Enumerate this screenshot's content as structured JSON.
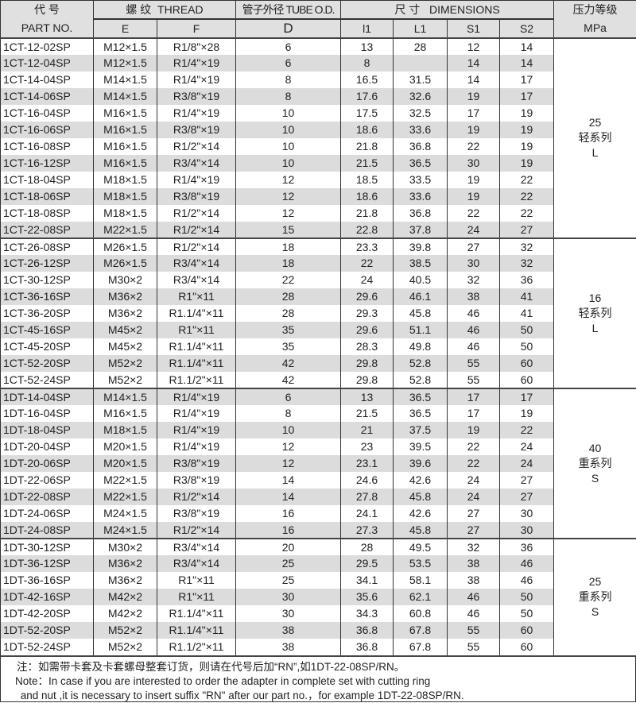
{
  "header": {
    "part_cn": "代 号",
    "part_en": "PART NO.",
    "thread": "螺 纹  THREAD",
    "tube": "管子外径 TUBE O.D.",
    "dims": "尺 寸   DIMENSIONS",
    "pressure": "压力等级",
    "E": "E",
    "F": "F",
    "D": "D",
    "l1": "l1",
    "L1": "L1",
    "S1": "S1",
    "S2": "S2",
    "mpa": "MPa"
  },
  "groups": [
    {
      "pressure": "25",
      "series": "轻系列",
      "code": "L",
      "rows": [
        [
          "1CT-12-02SP",
          "M12×1.5",
          "R1/8\"×28",
          "6",
          "13",
          "28",
          "12",
          "14"
        ],
        [
          "1CT-12-04SP",
          "M12×1.5",
          "R1/4\"×19",
          "6",
          "8",
          "",
          "14",
          "14"
        ],
        [
          "1CT-14-04SP",
          "M14×1.5",
          "R1/4\"×19",
          "8",
          "16.5",
          "31.5",
          "14",
          "17"
        ],
        [
          "1CT-14-06SP",
          "M14×1.5",
          "R3/8\"×19",
          "8",
          "17.6",
          "32.6",
          "19",
          "17"
        ],
        [
          "1CT-16-04SP",
          "M16×1.5",
          "R1/4\"×19",
          "10",
          "17.5",
          "32.5",
          "17",
          "19"
        ],
        [
          "1CT-16-06SP",
          "M16×1.5",
          "R3/8\"×19",
          "10",
          "18.6",
          "33.6",
          "19",
          "19"
        ],
        [
          "1CT-16-08SP",
          "M16×1.5",
          "R1/2\"×14",
          "10",
          "21.8",
          "36.8",
          "22",
          "19"
        ],
        [
          "1CT-16-12SP",
          "M16×1.5",
          "R3/4\"×14",
          "10",
          "21.5",
          "36.5",
          "30",
          "19"
        ],
        [
          "1CT-18-04SP",
          "M18×1.5",
          "R1/4\"×19",
          "12",
          "18.5",
          "33.5",
          "19",
          "22"
        ],
        [
          "1CT-18-06SP",
          "M18×1.5",
          "R3/8\"×19",
          "12",
          "18.6",
          "33.6",
          "19",
          "22"
        ],
        [
          "1CT-18-08SP",
          "M18×1.5",
          "R1/2\"×14",
          "12",
          "21.8",
          "36.8",
          "22",
          "22"
        ],
        [
          "1CT-22-08SP",
          "M22×1.5",
          "R1/2\"×14",
          "15",
          "22.8",
          "37.8",
          "24",
          "27"
        ]
      ]
    },
    {
      "pressure": "16",
      "series": "轻系列",
      "code": "L",
      "rows": [
        [
          "1CT-26-08SP",
          "M26×1.5",
          "R1/2\"×14",
          "18",
          "23.3",
          "39.8",
          "27",
          "32"
        ],
        [
          "1CT-26-12SP",
          "M26×1.5",
          "R3/4\"×14",
          "18",
          "22",
          "38.5",
          "30",
          "32"
        ],
        [
          "1CT-30-12SP",
          "M30×2",
          "R3/4\"×14",
          "22",
          "24",
          "40.5",
          "32",
          "36"
        ],
        [
          "1CT-36-16SP",
          "M36×2",
          "R1\"×11",
          "28",
          "29.6",
          "46.1",
          "38",
          "41"
        ],
        [
          "1CT-36-20SP",
          "M36×2",
          "R1.1/4\"×11",
          "28",
          "29.3",
          "45.8",
          "46",
          "41"
        ],
        [
          "1CT-45-16SP",
          "M45×2",
          "R1\"×11",
          "35",
          "29.6",
          "51.1",
          "46",
          "50"
        ],
        [
          "1CT-45-20SP",
          "M45×2",
          "R1.1/4\"×11",
          "35",
          "28.3",
          "49.8",
          "46",
          "50"
        ],
        [
          "1CT-52-20SP",
          "M52×2",
          "R1.1/4\"×11",
          "42",
          "29.8",
          "52.8",
          "55",
          "60"
        ],
        [
          "1CT-52-24SP",
          "M52×2",
          "R1.1/2\"×11",
          "42",
          "29.8",
          "52.8",
          "55",
          "60"
        ]
      ]
    },
    {
      "pressure": "40",
      "series": "重系列",
      "code": "S",
      "rows": [
        [
          "1DT-14-04SP",
          "M14×1.5",
          "R1/4\"×19",
          "6",
          "13",
          "36.5",
          "17",
          "17"
        ],
        [
          "1DT-16-04SP",
          "M16×1.5",
          "R1/4\"×19",
          "8",
          "21.5",
          "36.5",
          "17",
          "19"
        ],
        [
          "1DT-18-04SP",
          "M18×1.5",
          "R1/4\"×19",
          "10",
          "21",
          "37.5",
          "19",
          "22"
        ],
        [
          "1DT-20-04SP",
          "M20×1.5",
          "R1/4\"×19",
          "12",
          "23",
          "39.5",
          "22",
          "24"
        ],
        [
          "1DT-20-06SP",
          "M20×1.5",
          "R3/8\"×19",
          "12",
          "23.1",
          "39.6",
          "22",
          "24"
        ],
        [
          "1DT-22-06SP",
          "M22×1.5",
          "R3/8\"×19",
          "14",
          "24.6",
          "42.6",
          "24",
          "27"
        ],
        [
          "1DT-22-08SP",
          "M22×1.5",
          "R1/2\"×14",
          "14",
          "27.8",
          "45.8",
          "24",
          "27"
        ],
        [
          "1DT-24-06SP",
          "M24×1.5",
          "R3/8\"×19",
          "16",
          "24.1",
          "42.6",
          "27",
          "30"
        ],
        [
          "1DT-24-08SP",
          "M24×1.5",
          "R1/2\"×14",
          "16",
          "27.3",
          "45.8",
          "27",
          "30"
        ]
      ]
    },
    {
      "pressure": "25",
      "series": "重系列",
      "code": "S",
      "rows": [
        [
          "1DT-30-12SP",
          "M30×2",
          "R3/4\"×14",
          "20",
          "28",
          "49.5",
          "32",
          "36"
        ],
        [
          "1DT-36-12SP",
          "M36×2",
          "R3/4\"×14",
          "25",
          "29.5",
          "53.5",
          "38",
          "46"
        ],
        [
          "1DT-36-16SP",
          "M36×2",
          "R1\"×11",
          "25",
          "34.1",
          "58.1",
          "38",
          "46"
        ],
        [
          "1DT-42-16SP",
          "M42×2",
          "R1\"×11",
          "30",
          "35.6",
          "62.1",
          "46",
          "50"
        ],
        [
          "1DT-42-20SP",
          "M42×2",
          "R1.1/4\"×11",
          "30",
          "34.3",
          "60.8",
          "46",
          "50"
        ],
        [
          "1DT-52-20SP",
          "M52×2",
          "R1.1/4\"×11",
          "38",
          "36.8",
          "67.8",
          "55",
          "60"
        ],
        [
          "1DT-52-24SP",
          "M52×2",
          "R1.1/2\"×11",
          "38",
          "36.8",
          "67.8",
          "55",
          "60"
        ]
      ]
    }
  ],
  "note": {
    "cn": "注：如需带卡套及卡套螺母整套订货，则请在代号后加“RN”,如1DT-22-08SP/RN。",
    "en1": "Note：In case if you are interested to order the adapter in complete set with cutting ring",
    "en2": " and nut ,it is necessary to insert suffix \"RN\" after our part no.，for example 1DT-22-08SP/RN."
  },
  "colors": {
    "stripe": "#dcdcdc",
    "header": "#e0e0e0"
  }
}
